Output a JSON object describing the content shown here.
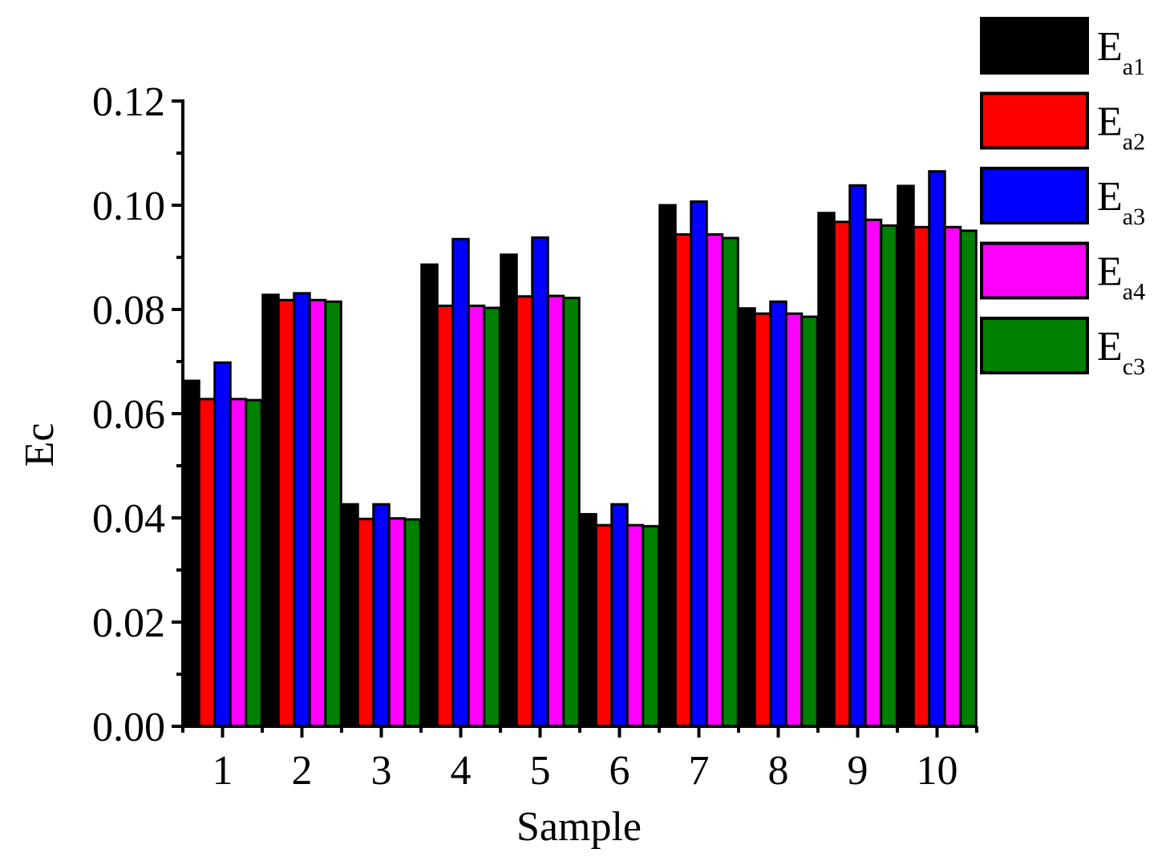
{
  "chart_data": {
    "type": "bar",
    "title": "",
    "xlabel": "Sample",
    "ylabel": "Ec",
    "ylim": [
      0,
      0.12
    ],
    "yticks": [
      "0.00",
      "0.02",
      "0.04",
      "0.06",
      "0.08",
      "0.10",
      "0.12"
    ],
    "ytick_values": [
      0,
      0.02,
      0.04,
      0.06,
      0.08,
      0.1,
      0.12
    ],
    "categories": [
      "1",
      "2",
      "3",
      "4",
      "5",
      "6",
      "7",
      "8",
      "9",
      "10"
    ],
    "legend_position": "top-right",
    "series": [
      {
        "name": "Ea1",
        "label_main": "E",
        "label_sub": "a1",
        "color": "#000000",
        "values": [
          0.0663,
          0.0828,
          0.0426,
          0.0886,
          0.0905,
          0.0407,
          0.1,
          0.0802,
          0.0985,
          0.1037
        ]
      },
      {
        "name": "Ea2",
        "label_main": "E",
        "label_sub": "a2",
        "color": "#ff0000",
        "values": [
          0.0628,
          0.0818,
          0.0398,
          0.0807,
          0.0825,
          0.0386,
          0.0944,
          0.0792,
          0.0968,
          0.0958
        ]
      },
      {
        "name": "Ea3",
        "label_main": "E",
        "label_sub": "a3",
        "color": "#0000ff",
        "values": [
          0.0698,
          0.0831,
          0.0426,
          0.0935,
          0.0938,
          0.0426,
          0.1007,
          0.0815,
          0.1038,
          0.1065
        ]
      },
      {
        "name": "Ea4",
        "label_main": "E",
        "label_sub": "a4",
        "color": "#ff00ff",
        "values": [
          0.0628,
          0.0818,
          0.0399,
          0.0807,
          0.0826,
          0.0386,
          0.0944,
          0.0792,
          0.0972,
          0.0958
        ]
      },
      {
        "name": "Ec3",
        "label_main": "E",
        "label_sub": "c3",
        "color": "#008000",
        "values": [
          0.0626,
          0.0815,
          0.0397,
          0.0803,
          0.0822,
          0.0384,
          0.0937,
          0.0786,
          0.0961,
          0.0951
        ]
      }
    ]
  }
}
